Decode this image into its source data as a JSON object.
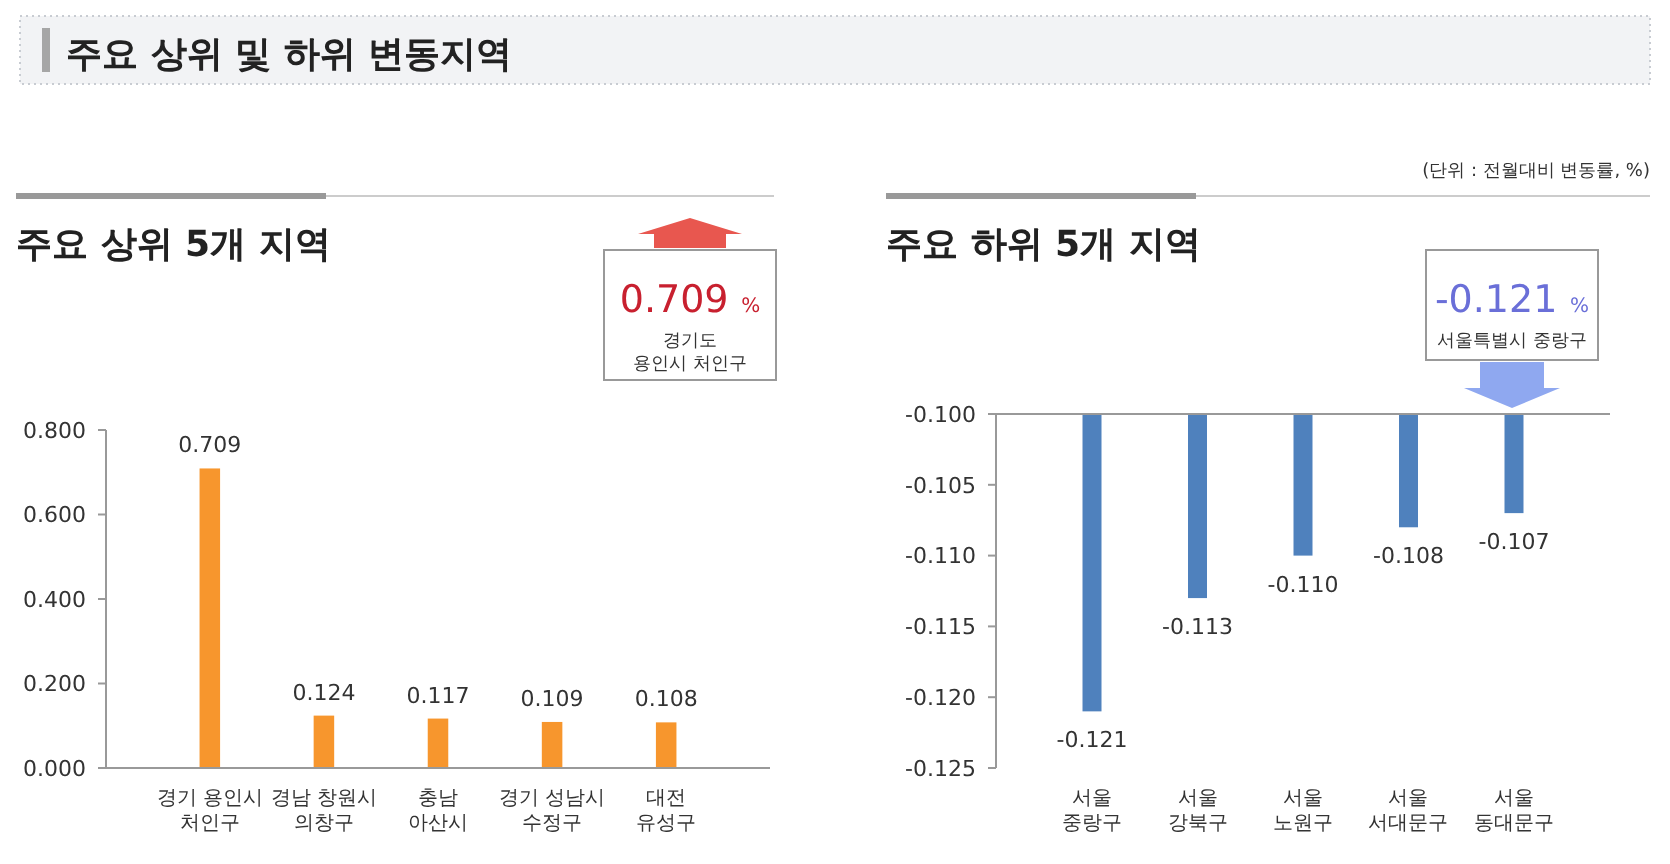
{
  "chart_data": [
    {
      "type": "bar",
      "title": "주요 상위 및 하위 변동지역",
      "subtitle": "주요 상위 5개 지역",
      "categories": [
        "경기 용인시\n처인구",
        "경남 창원시\n의창구",
        "충남\n아산시",
        "경기 성남시\n수정구",
        "대전\n유성구"
      ],
      "values": [
        0.709,
        0.124,
        0.117,
        0.109,
        0.108
      ],
      "value_labels": [
        "0.709",
        "0.124",
        "0.117",
        "0.109",
        "0.108"
      ],
      "color": "#f7962d",
      "ylim": [
        0,
        0.8
      ],
      "yticks": [
        {
          "value": 0,
          "label": "0.000"
        },
        {
          "value": 0.2,
          "label": "0.200"
        },
        {
          "value": 0.4,
          "label": "0.400"
        },
        {
          "value": 0.6,
          "label": "0.600"
        },
        {
          "value": 0.8,
          "label": "0.800"
        }
      ],
      "annotations": [
        "0.709 %",
        "경기도\n용인시 처인구"
      ]
    },
    {
      "type": "bar",
      "subtitle": "주요 하위 5개 지역",
      "categories": [
        "서울\n중랑구",
        "서울\n강북구",
        "서울\n노원구",
        "서울\n서대문구",
        "서울\n동대문구"
      ],
      "values": [
        -0.121,
        -0.113,
        -0.11,
        -0.108,
        -0.107
      ],
      "value_labels": [
        "-0.121",
        "-0.113",
        "-0.110",
        "-0.108",
        "-0.107"
      ],
      "color": "#4f81bd",
      "ylim": [
        -0.125,
        -0.1
      ],
      "yticks": [
        {
          "value": -0.125,
          "label": "-0.125"
        },
        {
          "value": -0.12,
          "label": "-0.120"
        },
        {
          "value": -0.115,
          "label": "-0.115"
        },
        {
          "value": -0.11,
          "label": "-0.110"
        },
        {
          "value": -0.105,
          "label": "-0.105"
        },
        {
          "value": -0.1,
          "label": "-0.100"
        }
      ],
      "annotations": [
        "-0.121 %",
        "서울특별시 중랑구",
        "(단위 : 전월대비 변동률, %)"
      ]
    }
  ]
}
